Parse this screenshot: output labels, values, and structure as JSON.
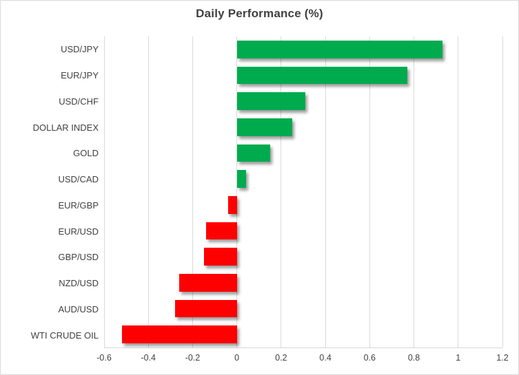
{
  "window": {
    "background": "#ffffff",
    "border_color": "#d9d9d9"
  },
  "chart_data": {
    "type": "bar",
    "orientation": "horizontal",
    "title": "Daily Performance (%)",
    "categories": [
      "USD/JPY",
      "EUR/JPY",
      "USD/CHF",
      "DOLLAR INDEX",
      "GOLD",
      "USD/CAD",
      "EUR/GBP",
      "EUR/USD",
      "GBP/USD",
      "NZD/USD",
      "AUD/USD",
      "WTI CRUDE OIL"
    ],
    "values": [
      0.93,
      0.77,
      0.31,
      0.25,
      0.15,
      0.04,
      -0.04,
      -0.14,
      -0.15,
      -0.26,
      -0.28,
      -0.52
    ],
    "xlim": [
      -0.6,
      1.2
    ],
    "xticks": [
      -0.6,
      -0.4,
      -0.2,
      0,
      0.2,
      0.4,
      0.6,
      0.8,
      1,
      1.2
    ],
    "xtick_labels": [
      "-0.6",
      "-0.4",
      "-0.2",
      "0",
      "0.2",
      "0.4",
      "0.6",
      "0.8",
      "1",
      "1.2"
    ],
    "grid": true,
    "legend": false,
    "colors": {
      "positive": "#00ab4e",
      "negative": "#fe0000",
      "gridline": "#d9d9d9",
      "title": "#404040",
      "category_label": "#3f3f3f",
      "tick_label": "#404040"
    }
  }
}
